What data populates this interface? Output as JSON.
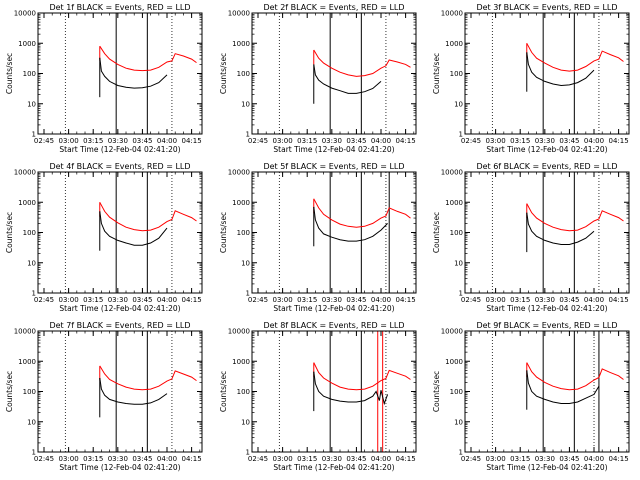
{
  "chart_data": {
    "type": "line",
    "panels_layout": "3x3 grid",
    "scale_y": "log",
    "ylim": [
      1,
      10000
    ],
    "y_ticks": [
      "1",
      "10",
      "100",
      "1000",
      "10000"
    ],
    "x_range": [
      "02:41:20",
      "04:21:20"
    ],
    "x_ticks": [
      "02:45",
      "03:00",
      "03:15",
      "03:30",
      "03:45",
      "04:00",
      "04:15"
    ],
    "ylabel": "Counts/sec",
    "xlabel": "Start Time (12-Feb-04 02:41:20)",
    "series_names": [
      "Events",
      "LLD"
    ],
    "colors": {
      "events": "#000000",
      "lld": "#ff0000",
      "axes": "#000000"
    },
    "panels": [
      {
        "title": "Det 1f BLACK = Events, RED = LLD",
        "vlines_solid": [
          "03:29",
          "03:48"
        ],
        "vlines_dotted": [
          "02:58",
          "04:03"
        ],
        "events": {
          "x": [
            "03:19",
            "03:20",
            "03:22",
            "03:25",
            "03:30",
            "03:35",
            "03:40",
            "03:45",
            "03:50",
            "03:55",
            "04:00"
          ],
          "y": [
            330,
            120,
            80,
            55,
            40,
            35,
            33,
            34,
            38,
            50,
            90
          ]
        },
        "lld": {
          "x": [
            "03:19",
            "03:22",
            "03:25",
            "03:30",
            "03:35",
            "03:40",
            "03:45",
            "03:50",
            "03:55",
            "04:00",
            "04:03",
            "04:05",
            "04:10",
            "04:15",
            "04:18"
          ],
          "y": [
            800,
            450,
            300,
            200,
            150,
            130,
            125,
            130,
            160,
            240,
            260,
            450,
            380,
            300,
            230
          ]
        }
      },
      {
        "title": "Det 2f BLACK = Events, RED = LLD",
        "vlines_solid": [
          "03:29",
          "03:48"
        ],
        "vlines_dotted": [
          "02:58",
          "04:03"
        ],
        "events": {
          "x": [
            "03:19",
            "03:20",
            "03:22",
            "03:25",
            "03:30",
            "03:35",
            "03:40",
            "03:45",
            "03:50",
            "03:55",
            "04:00"
          ],
          "y": [
            200,
            90,
            60,
            45,
            33,
            27,
            22,
            22,
            25,
            32,
            55
          ]
        },
        "lld": {
          "x": [
            "03:19",
            "03:22",
            "03:25",
            "03:30",
            "03:35",
            "03:40",
            "03:45",
            "03:50",
            "03:55",
            "04:00",
            "04:03",
            "04:05",
            "04:10",
            "04:15",
            "04:18"
          ],
          "y": [
            600,
            320,
            220,
            150,
            110,
            90,
            80,
            85,
            100,
            150,
            180,
            280,
            240,
            200,
            160
          ]
        }
      },
      {
        "title": "Det 3f BLACK = Events, RED = LLD",
        "vlines_solid": [
          "03:29",
          "03:48"
        ],
        "vlines_dotted": [
          "02:58",
          "04:03"
        ],
        "events": {
          "x": [
            "03:19",
            "03:20",
            "03:22",
            "03:25",
            "03:30",
            "03:35",
            "03:40",
            "03:45",
            "03:50",
            "03:55",
            "04:00"
          ],
          "y": [
            500,
            200,
            110,
            75,
            55,
            45,
            40,
            42,
            50,
            70,
            130
          ]
        },
        "lld": {
          "x": [
            "03:19",
            "03:22",
            "03:25",
            "03:30",
            "03:35",
            "03:40",
            "03:45",
            "03:50",
            "03:55",
            "04:00",
            "04:03",
            "04:05",
            "04:10",
            "04:15",
            "04:18"
          ],
          "y": [
            1000,
            500,
            320,
            220,
            160,
            130,
            120,
            130,
            170,
            260,
            300,
            550,
            420,
            330,
            250
          ]
        }
      },
      {
        "title": "Det 4f BLACK = Events, RED = LLD",
        "vlines_solid": [
          "03:29",
          "03:48"
        ],
        "vlines_dotted": [
          "02:58",
          "04:03"
        ],
        "events": {
          "x": [
            "03:19",
            "03:20",
            "03:22",
            "03:25",
            "03:30",
            "03:35",
            "03:40",
            "03:45",
            "03:50",
            "03:55",
            "04:00"
          ],
          "y": [
            500,
            200,
            110,
            75,
            55,
            45,
            38,
            38,
            45,
            65,
            140
          ]
        },
        "lld": {
          "x": [
            "03:19",
            "03:22",
            "03:25",
            "03:30",
            "03:35",
            "03:40",
            "03:45",
            "03:50",
            "03:55",
            "04:00",
            "04:03",
            "04:05",
            "04:10",
            "04:15",
            "04:18"
          ],
          "y": [
            1000,
            500,
            320,
            210,
            150,
            125,
            115,
            120,
            150,
            230,
            270,
            520,
            400,
            310,
            240
          ]
        }
      },
      {
        "title": "Det 5f BLACK = Events, RED = LLD",
        "vlines_solid": [
          "03:29",
          "03:48",
          "04:05"
        ],
        "vlines_dotted": [
          "02:58",
          "04:03"
        ],
        "events": {
          "x": [
            "03:19",
            "03:20",
            "03:22",
            "03:25",
            "03:30",
            "03:35",
            "03:40",
            "03:45",
            "03:50",
            "03:55",
            "04:00",
            "04:04"
          ],
          "y": [
            700,
            260,
            140,
            90,
            70,
            58,
            52,
            52,
            58,
            75,
            120,
            200
          ]
        },
        "lld": {
          "x": [
            "03:19",
            "03:22",
            "03:25",
            "03:30",
            "03:35",
            "03:40",
            "03:45",
            "03:50",
            "03:55",
            "04:00",
            "04:03",
            "04:05",
            "04:10",
            "04:15",
            "04:18"
          ],
          "y": [
            1300,
            650,
            400,
            260,
            190,
            160,
            150,
            160,
            200,
            300,
            350,
            650,
            500,
            400,
            300
          ]
        }
      },
      {
        "title": "Det 6f BLACK = Events, RED = LLD",
        "vlines_solid": [
          "03:29",
          "03:48"
        ],
        "vlines_dotted": [
          "02:58",
          "04:03"
        ],
        "events": {
          "x": [
            "03:19",
            "03:20",
            "03:22",
            "03:25",
            "03:30",
            "03:35",
            "03:40",
            "03:45",
            "03:50",
            "03:55",
            "04:00"
          ],
          "y": [
            450,
            190,
            110,
            75,
            55,
            45,
            40,
            40,
            48,
            65,
            110
          ]
        },
        "lld": {
          "x": [
            "03:19",
            "03:22",
            "03:25",
            "03:30",
            "03:35",
            "03:40",
            "03:45",
            "03:50",
            "03:55",
            "04:00",
            "04:03",
            "04:05",
            "04:10",
            "04:15",
            "04:18"
          ],
          "y": [
            900,
            450,
            300,
            200,
            150,
            125,
            115,
            120,
            155,
            240,
            280,
            520,
            400,
            310,
            240
          ]
        }
      },
      {
        "title": "Det 7f BLACK = Events, RED = LLD",
        "vlines_solid": [
          "03:29",
          "03:48"
        ],
        "vlines_dotted": [
          "02:58",
          "04:03"
        ],
        "events": {
          "x": [
            "03:19",
            "03:20",
            "03:22",
            "03:25",
            "03:30",
            "03:35",
            "03:40",
            "03:45",
            "03:50",
            "03:55",
            "04:00"
          ],
          "y": [
            280,
            120,
            75,
            55,
            45,
            40,
            38,
            38,
            42,
            55,
            85
          ]
        },
        "lld": {
          "x": [
            "03:19",
            "03:22",
            "03:25",
            "03:30",
            "03:35",
            "03:40",
            "03:45",
            "03:50",
            "03:55",
            "04:00",
            "04:03",
            "04:05",
            "04:10",
            "04:15",
            "04:18"
          ],
          "y": [
            700,
            380,
            250,
            180,
            140,
            120,
            115,
            120,
            150,
            220,
            260,
            480,
            380,
            300,
            230
          ]
        }
      },
      {
        "title": "Det 8f BLACK = Events, RED = LLD",
        "vlines_solid": [
          "03:29",
          "03:48"
        ],
        "vlines_dotted": [
          "02:58",
          "04:03"
        ],
        "vlines_red": [
          "03:58",
          "04:01"
        ],
        "events": {
          "x": [
            "03:19",
            "03:20",
            "03:22",
            "03:25",
            "03:30",
            "03:35",
            "03:40",
            "03:45",
            "03:50",
            "03:55",
            "03:57",
            "03:59",
            "04:00",
            "04:02",
            "04:04"
          ],
          "y": [
            450,
            180,
            100,
            70,
            55,
            48,
            45,
            45,
            50,
            70,
            100,
            50,
            110,
            40,
            80
          ]
        },
        "lld": {
          "x": [
            "03:19",
            "03:22",
            "03:25",
            "03:30",
            "03:35",
            "03:40",
            "03:45",
            "03:50",
            "03:55",
            "04:00",
            "04:03",
            "04:05",
            "04:10",
            "04:15",
            "04:18"
          ],
          "y": [
            900,
            420,
            280,
            190,
            140,
            120,
            115,
            120,
            150,
            230,
            270,
            500,
            400,
            320,
            250
          ]
        }
      },
      {
        "title": "Det 9f BLACK = Events, RED = LLD",
        "vlines_solid": [
          "03:29",
          "03:48",
          "04:03"
        ],
        "vlines_dotted": [
          "02:58",
          "04:00"
        ],
        "events": {
          "x": [
            "03:19",
            "03:20",
            "03:22",
            "03:25",
            "03:30",
            "03:35",
            "03:40",
            "03:45",
            "03:50",
            "03:55",
            "04:00",
            "04:03"
          ],
          "y": [
            500,
            190,
            100,
            70,
            55,
            45,
            40,
            40,
            45,
            60,
            80,
            150
          ]
        },
        "lld": {
          "x": [
            "03:19",
            "03:22",
            "03:25",
            "03:30",
            "03:35",
            "03:40",
            "03:45",
            "03:50",
            "03:55",
            "04:00",
            "04:03",
            "04:05",
            "04:10",
            "04:15",
            "04:18"
          ],
          "y": [
            900,
            450,
            300,
            200,
            150,
            125,
            115,
            120,
            155,
            240,
            290,
            560,
            420,
            330,
            250
          ]
        }
      }
    ]
  }
}
